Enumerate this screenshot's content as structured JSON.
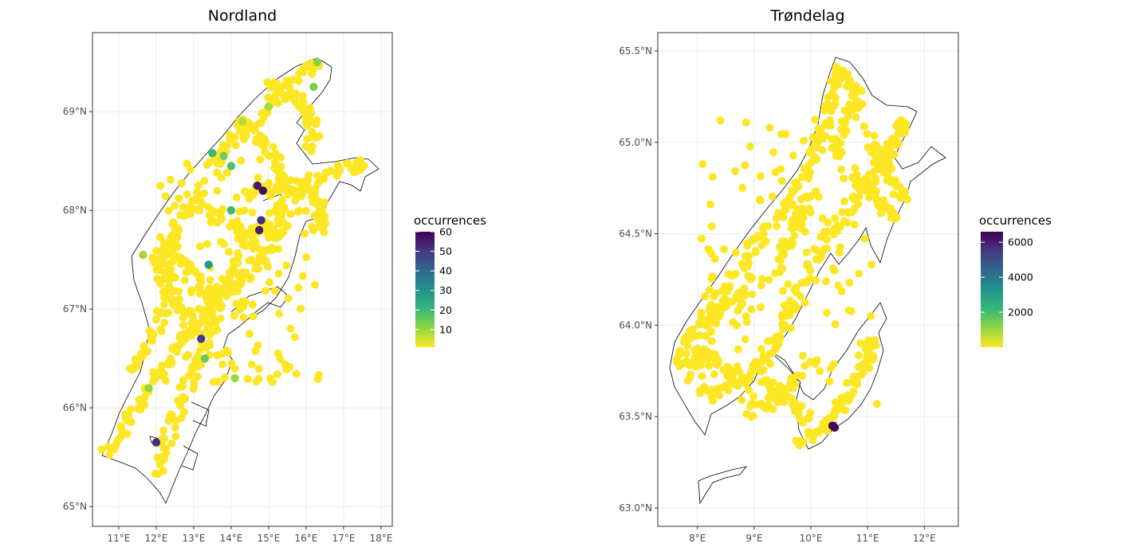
{
  "chart_data": [
    {
      "type": "scatter",
      "title": "Nordland",
      "xlabel": "",
      "ylabel": "",
      "xlim": [
        10.3,
        18.3
      ],
      "ylim": [
        64.8,
        69.8
      ],
      "x_ticks": [
        11,
        12,
        13,
        14,
        15,
        16,
        17,
        18
      ],
      "x_tick_labels": [
        "11°E",
        "12°E",
        "13°E",
        "14°E",
        "15°E",
        "16°E",
        "17°E",
        "18°E"
      ],
      "y_ticks": [
        65,
        66,
        67,
        68,
        69
      ],
      "y_tick_labels": [
        "65°N",
        "66°N",
        "67°N",
        "68°N",
        "69°N"
      ],
      "grid": true,
      "legend": {
        "title": "occurrences",
        "placement": "right",
        "min": 1,
        "max": 60,
        "breaks": [
          10,
          20,
          30,
          40,
          50,
          60
        ],
        "labels": [
          "10",
          "20",
          "30",
          "40",
          "50",
          "60"
        ]
      },
      "colormap": [
        "#fde725",
        "#90d743",
        "#35b779",
        "#21918c",
        "#31688e",
        "#443983",
        "#440154"
      ],
      "points": [
        {
          "x": 14.7,
          "y": 68.25,
          "value": 56
        },
        {
          "x": 14.85,
          "y": 68.2,
          "value": 58
        },
        {
          "x": 14.8,
          "y": 67.9,
          "value": 52
        },
        {
          "x": 14.75,
          "y": 67.8,
          "value": 55
        },
        {
          "x": 13.2,
          "y": 66.7,
          "value": 50
        },
        {
          "x": 12.0,
          "y": 65.65,
          "value": 52
        },
        {
          "x": 13.4,
          "y": 67.45,
          "value": 28
        },
        {
          "x": 13.5,
          "y": 68.58,
          "value": 20
        },
        {
          "x": 14.0,
          "y": 68.45,
          "value": 18
        },
        {
          "x": 14.0,
          "y": 68.0,
          "value": 20
        },
        {
          "x": 13.3,
          "y": 66.5,
          "value": 15
        },
        {
          "x": 13.8,
          "y": 68.55,
          "value": 14
        },
        {
          "x": 16.2,
          "y": 69.25,
          "value": 13
        },
        {
          "x": 16.3,
          "y": 69.5,
          "value": 12
        },
        {
          "x": 11.8,
          "y": 66.2,
          "value": 11
        },
        {
          "x": 14.1,
          "y": 66.3,
          "value": 10
        },
        {
          "x": 11.65,
          "y": 67.55,
          "value": 9
        },
        {
          "x": 15.0,
          "y": 69.05,
          "value": 9
        },
        {
          "x": 14.3,
          "y": 68.9,
          "value": 8
        }
      ]
    },
    {
      "type": "scatter",
      "title": "Trøndelag",
      "xlabel": "",
      "ylabel": "",
      "xlim": [
        7.3,
        12.6
      ],
      "ylim": [
        62.9,
        65.6
      ],
      "x_ticks": [
        8,
        9,
        10,
        11,
        12
      ],
      "x_tick_labels": [
        "8°E",
        "9°E",
        "10°E",
        "11°E",
        "12°E"
      ],
      "y_ticks": [
        63.0,
        63.5,
        64.0,
        64.5,
        65.0,
        65.5
      ],
      "y_tick_labels": [
        "63.0°N",
        "63.5°N",
        "64.0°N",
        "64.5°N",
        "65.0°N",
        "65.5°N"
      ],
      "grid": true,
      "legend": {
        "title": "occurrences",
        "placement": "right",
        "min": 1,
        "max": 6600,
        "breaks": [
          2000,
          4000,
          6000
        ],
        "labels": [
          "2000",
          "4000",
          "6000"
        ]
      },
      "colormap": [
        "#fde725",
        "#90d743",
        "#35b779",
        "#21918c",
        "#31688e",
        "#443983",
        "#440154"
      ],
      "points": [
        {
          "x": 10.38,
          "y": 63.45,
          "value": 6500
        },
        {
          "x": 10.42,
          "y": 63.44,
          "value": 6400
        }
      ]
    }
  ]
}
